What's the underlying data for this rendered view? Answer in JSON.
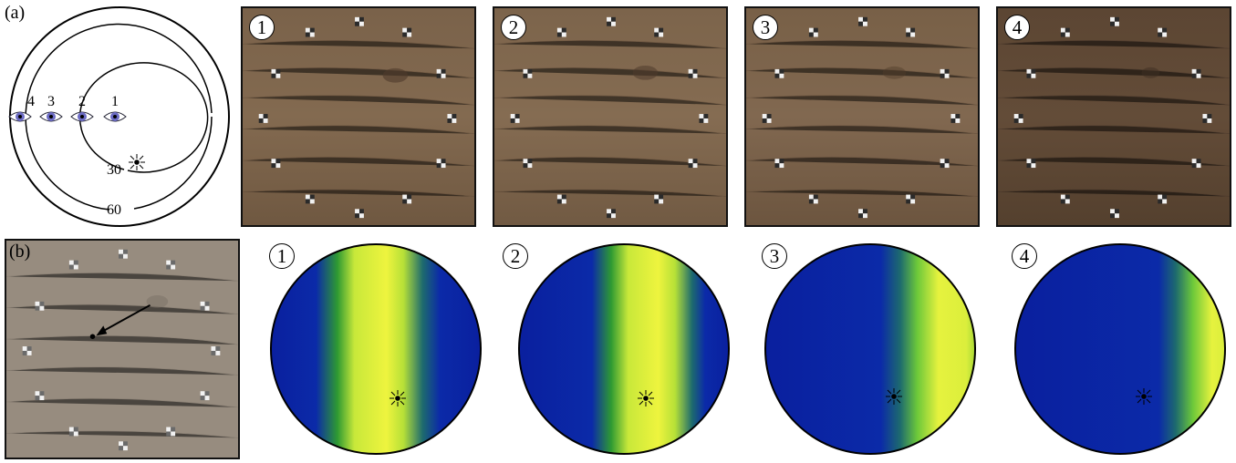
{
  "panel_a": {
    "label": "(a)",
    "ring_labels": {
      "inner": "30",
      "outer": "60"
    },
    "viewpoints": [
      "4",
      "3",
      "2",
      "1"
    ]
  },
  "panel_b": {
    "label": "(b)"
  },
  "photos": [
    {
      "number": "1",
      "tone": "#7b634b"
    },
    {
      "number": "2",
      "tone": "#7d654c"
    },
    {
      "number": "3",
      "tone": "#7a6248"
    },
    {
      "number": "4",
      "tone": "#5e4734"
    }
  ],
  "reflectance_maps": [
    {
      "number": "2",
      "band": "center"
    }
  ],
  "reflectance_numbers": [
    "1",
    "2",
    "3",
    "4"
  ],
  "colors": {
    "wood": "#745b44",
    "wood_grey": "#958a7d",
    "map_blue": "#0a22a8",
    "map_green": "#2fa22a",
    "map_yellow": "#e8f23a",
    "eye_iris": "#4a4aa8"
  }
}
